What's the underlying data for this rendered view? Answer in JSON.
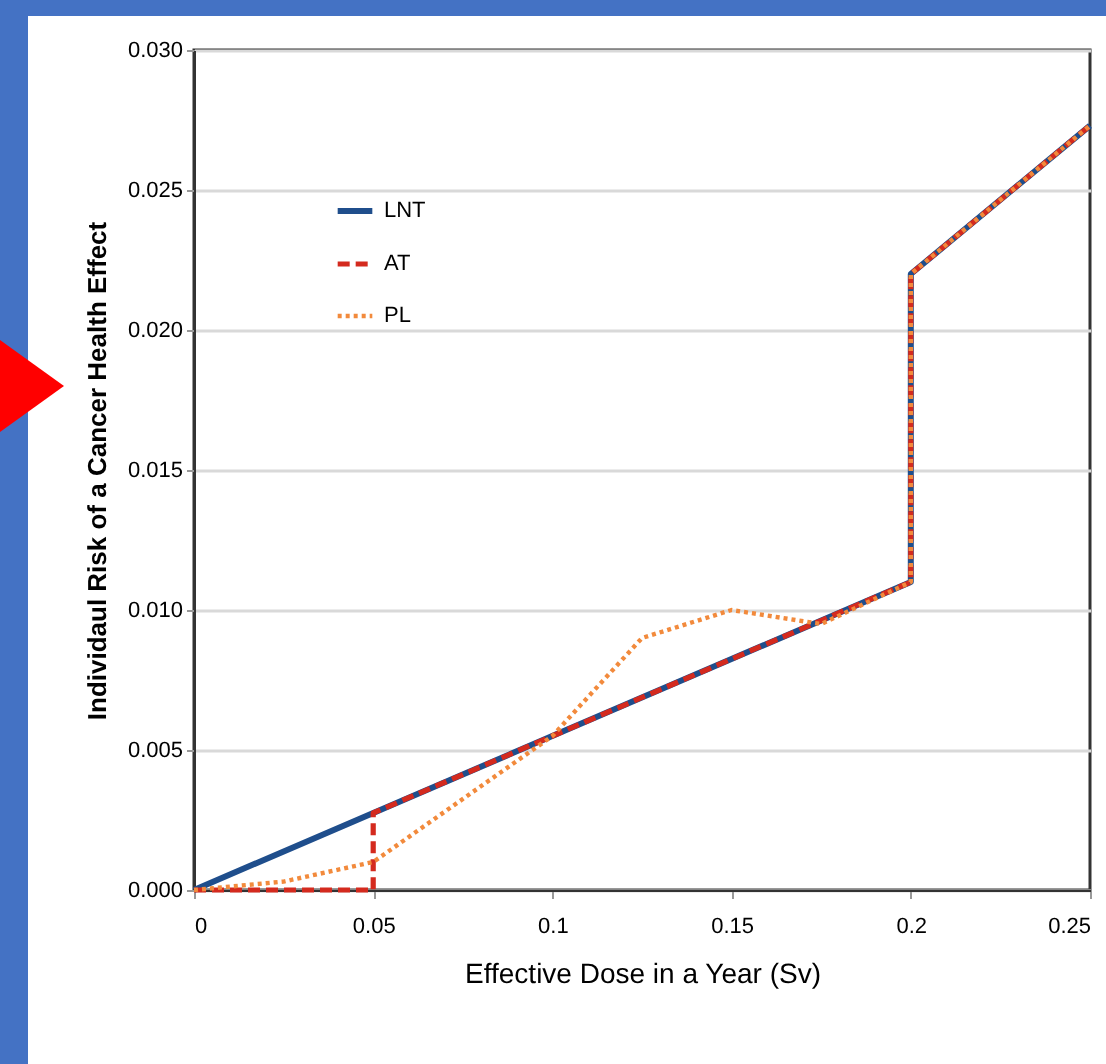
{
  "chart_data": {
    "type": "line",
    "xlabel": "Effective Dose in a Year (Sv)",
    "ylabel": "Individaul Risk of a Cancer Health Effect",
    "xlim": [
      0,
      0.25
    ],
    "xticks": [
      0,
      0.05,
      0.1,
      0.15,
      0.2,
      0.25
    ],
    "ylim": [
      0,
      0.03
    ],
    "yticks": [
      {
        "value": 0,
        "label": "0.000"
      },
      {
        "value": 0.005,
        "label": "0.005"
      },
      {
        "value": 0.01,
        "label": "0.010"
      },
      {
        "value": 0.015,
        "label": "0.015"
      },
      {
        "value": 0.02,
        "label": "0.020"
      },
      {
        "value": 0.025,
        "label": "0.025"
      },
      {
        "value": 0.03,
        "label": "0.030"
      }
    ],
    "grid": "y",
    "legend": "top left",
    "series": [
      {
        "name": "LNT",
        "color": "#1f4e8c",
        "line_style": "solid",
        "x": [
          0,
          0.2,
          0.2,
          0.25
        ],
        "values": [
          0,
          0.011,
          0.022,
          0.0273
        ]
      },
      {
        "name": "AT",
        "color": "#d42a1e",
        "line_style": "dashed",
        "x": [
          0,
          0.05,
          0.05,
          0.2,
          0.2,
          0.25
        ],
        "values": [
          0,
          0,
          0.00275,
          0.011,
          0.022,
          0.0273
        ]
      },
      {
        "name": "PL",
        "color": "#f28a3c",
        "line_style": "dotted",
        "x": [
          0,
          0.025,
          0.05,
          0.1,
          0.125,
          0.15,
          0.175,
          0.2,
          0.2,
          0.25
        ],
        "values": [
          0,
          0.0003,
          0.001,
          0.0055,
          0.009,
          0.01,
          0.0095,
          0.011,
          0.022,
          0.0273
        ]
      }
    ]
  }
}
